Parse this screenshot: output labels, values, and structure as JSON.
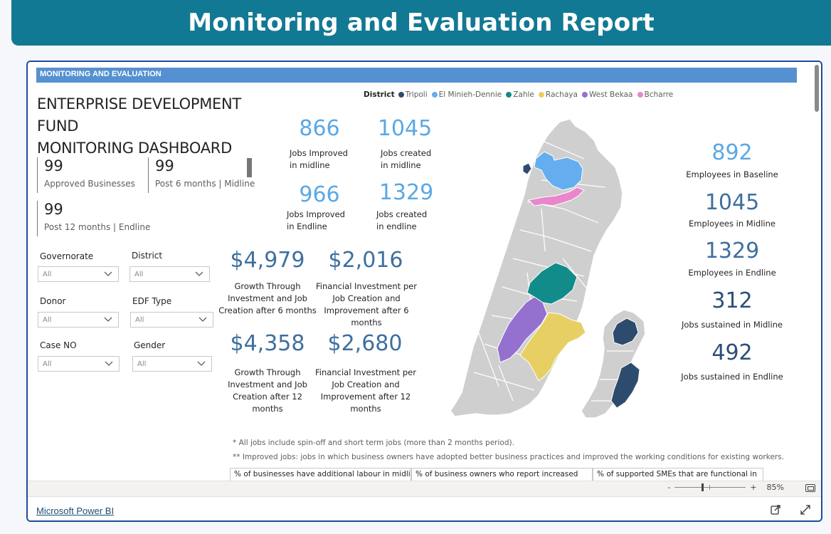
{
  "banner": {
    "title": "Monitoring and Evaluation Report"
  },
  "report": {
    "section_label": "MONITORING AND EVALUATION",
    "title_line1": "ENTERPRISE DEVELOPMENT FUND",
    "title_line2": "MONITORING DASHBOARD",
    "cards": [
      {
        "value": "99",
        "label": "Approved Businesses"
      },
      {
        "value": "99",
        "label": "Post 6 months | Midline"
      },
      {
        "value": "99",
        "label": "Post 12 months | Endline"
      }
    ],
    "filters": [
      {
        "label": "Governorate",
        "value": "All"
      },
      {
        "label": "District",
        "value": "All"
      },
      {
        "label": "Donor",
        "value": "All"
      },
      {
        "label": "EDF Type",
        "value": "All"
      },
      {
        "label": "Case NO",
        "value": "All"
      },
      {
        "label": "Gender",
        "value": "All"
      }
    ],
    "legend": {
      "title": "District",
      "items": [
        {
          "name": "Tripoli",
          "color": "#2d4c6d"
        },
        {
          "name": "El Minieh-Dennie",
          "color": "#64aef0"
        },
        {
          "name": "Zahle",
          "color": "#128c8a"
        },
        {
          "name": "Rachaya",
          "color": "#e8cf63"
        },
        {
          "name": "West Bekaa",
          "color": "#9470cf"
        },
        {
          "name": "Bcharre",
          "color": "#ea86cc"
        }
      ]
    },
    "jobs": {
      "jobs_improved_midline": {
        "value": "866",
        "label_1": "Jobs Improved",
        "label_2": "in midline"
      },
      "jobs_created_midline": {
        "value": "1045",
        "label_1": "Jobs created",
        "label_2": "in midline"
      },
      "jobs_improved_endline": {
        "value": "966",
        "label_1": "Jobs Improved",
        "label_2": "in Endline"
      },
      "jobs_created_endline": {
        "value": "1329",
        "label_1": "Jobs created",
        "label_2": "in endline"
      }
    },
    "investment": {
      "growth_6": {
        "value": "$4,979",
        "label_1": "Growth Through",
        "label_2": "Investment and Job",
        "label_3": "Creation after 6 months"
      },
      "fin_6": {
        "value": "$2,016",
        "label_1": "Financial Investment per",
        "label_2": "Job Creation and",
        "label_3": "Improvement after 6",
        "label_4": "months"
      },
      "growth_12": {
        "value": "$4,358",
        "label_1": "Growth Through",
        "label_2": "Investment and Job",
        "label_3": "Creation after 12 months"
      },
      "fin_12": {
        "value": "$2,680",
        "label_1": "Financial Investment per",
        "label_2": "Job Creation and",
        "label_3": "Improvement after 12",
        "label_4": "months"
      }
    },
    "employees": [
      {
        "value": "892",
        "label": "Employees in Baseline"
      },
      {
        "value": "1045",
        "label": "Employees in Midline"
      },
      {
        "value": "1329",
        "label": "Employees in Endline"
      },
      {
        "value": "312",
        "label": "Jobs sustained in Midline"
      },
      {
        "value": "492",
        "label": "Jobs sustained in Endline"
      }
    ],
    "notes": [
      "* All jobs include spin-off and short term jobs (more than 2 months period).",
      "** Improved jobs: jobs in which business owners have adopted better business practices and improved the working conditions for existing workers."
    ],
    "bottom_table_headers": [
      "% of businesses have additional labour in midline",
      "% of business owners who report increased",
      "% of supported SMEs that are functional in"
    ]
  },
  "toolbar": {
    "zoom_minus": "-",
    "zoom_plus": "+",
    "zoom_level": "85%"
  },
  "footer": {
    "link": "Microsoft Power BI"
  },
  "colors": {
    "banner": "#127994",
    "section_bar": "#5591d0",
    "kpi_light_blue": "#5ba8e4",
    "kpi_dark_blue": "#3e6f9f",
    "kpi_navy": "#2b4f77",
    "map_gray": "#cfcfcf"
  }
}
